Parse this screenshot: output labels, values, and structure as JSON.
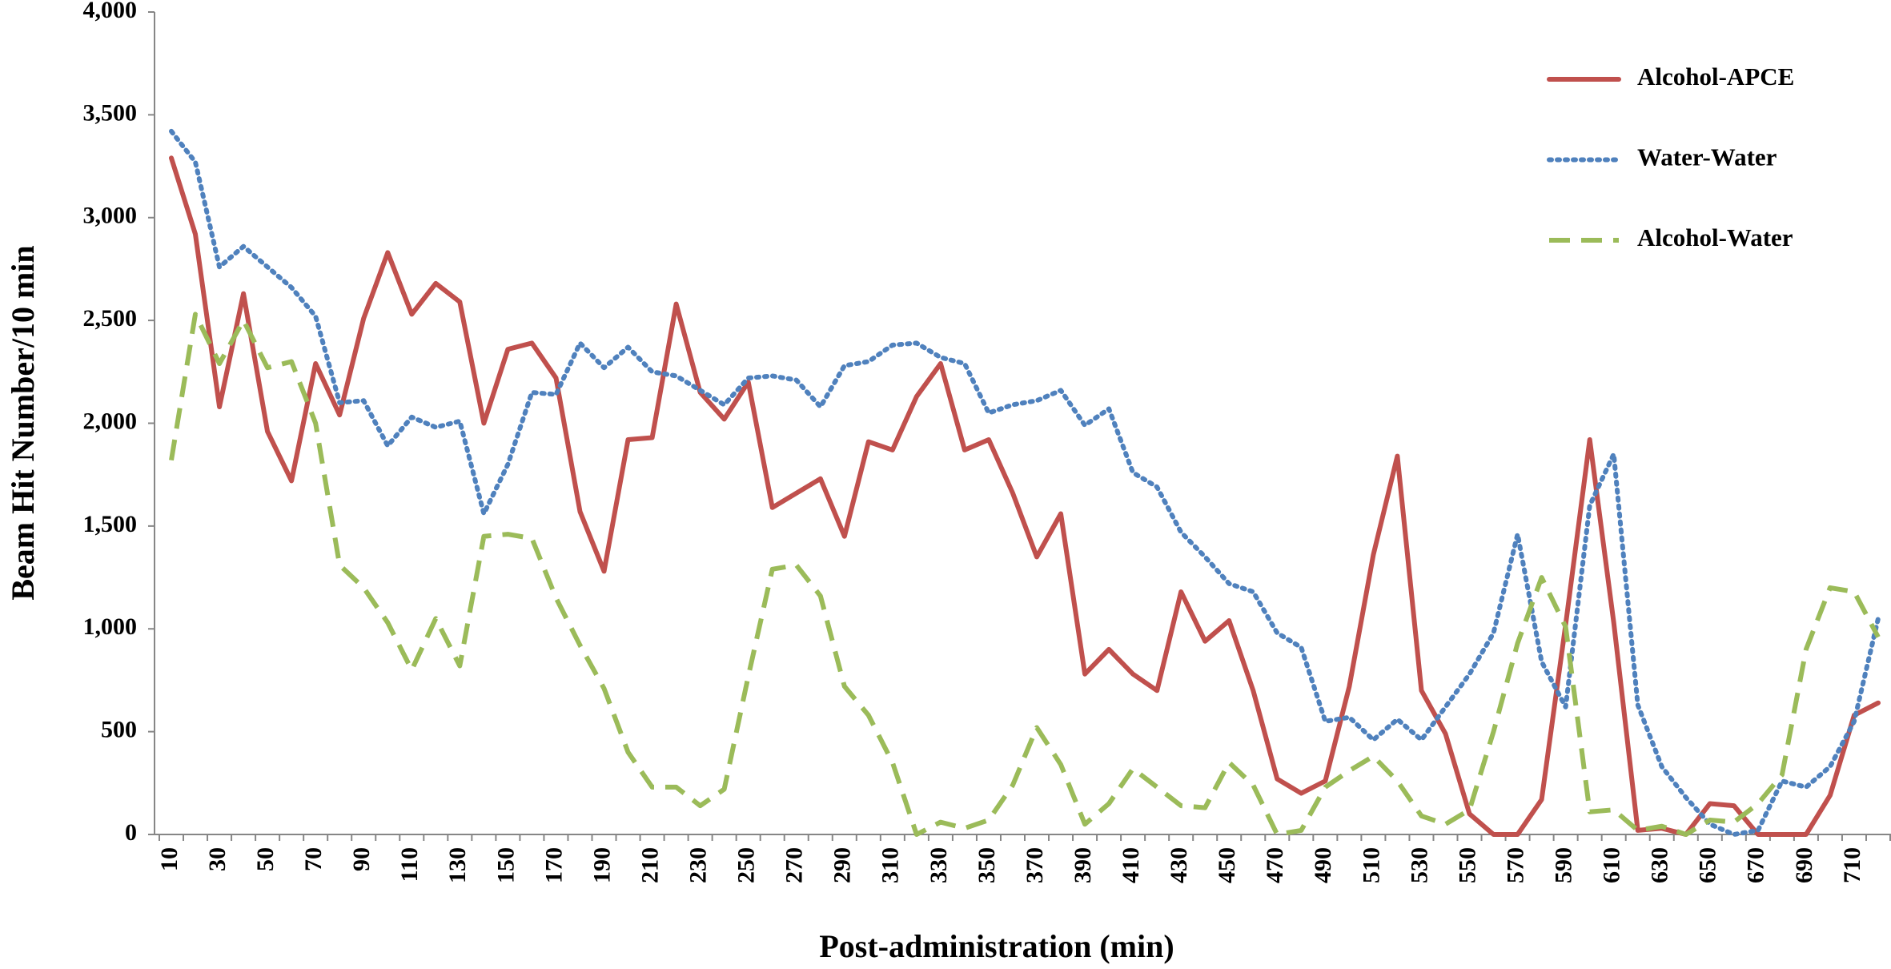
{
  "chart_data": {
    "type": "line",
    "x_label": "Post-administration (min)",
    "y_label": "Beam Hit Number/10 min",
    "categories": [
      10,
      null,
      30,
      null,
      50,
      null,
      70,
      null,
      90,
      null,
      110,
      null,
      130,
      null,
      150,
      null,
      170,
      null,
      190,
      null,
      210,
      null,
      230,
      null,
      250,
      null,
      270,
      null,
      290,
      null,
      310,
      null,
      330,
      null,
      350,
      null,
      370,
      null,
      390,
      null,
      410,
      null,
      430,
      null,
      450,
      null,
      470,
      null,
      490,
      null,
      510,
      null,
      530,
      null,
      550,
      null,
      570,
      null,
      590,
      null,
      610,
      null,
      630,
      null,
      650,
      null,
      670,
      null,
      690,
      null,
      710,
      null
    ],
    "ylim": [
      0,
      4000
    ],
    "yticks": [
      0,
      500,
      {
        "value": 1000,
        "label": "1,000"
      },
      {
        "value": 1500,
        "label": "1,500"
      },
      {
        "value": 2000,
        "label": "2,000"
      },
      {
        "value": 2500,
        "label": "2,500"
      },
      {
        "value": 3000,
        "label": "3,000"
      },
      {
        "value": 3500,
        "label": "3,500"
      },
      {
        "value": 4000,
        "label": "4,000"
      }
    ],
    "grid": false,
    "legend": "top-right",
    "series": [
      {
        "name": "Alcohol-APCE",
        "color": "#c0504d",
        "style": "solid",
        "values": [
          3290,
          2920,
          2080,
          2630,
          1960,
          1720,
          2290,
          2040,
          2510,
          2830,
          2530,
          2680,
          2590,
          2000,
          2360,
          2390,
          2220,
          1570,
          1280,
          1920,
          1930,
          2580,
          2150,
          2020,
          2200,
          1590,
          1660,
          1730,
          1450,
          1910,
          1870,
          2130,
          2290,
          1870,
          1920,
          1660,
          1350,
          1560,
          780,
          900,
          780,
          700,
          1180,
          940,
          1040,
          700,
          270,
          200,
          260,
          720,
          1360,
          1840,
          700,
          490,
          100,
          0,
          0,
          170,
          1020,
          1920,
          1030,
          20,
          30,
          0,
          150,
          140,
          0,
          0,
          0,
          190,
          580,
          640
        ]
      },
      {
        "name": "Water-Water",
        "color": "#4f81bd",
        "style": "dotted",
        "values": [
          3420,
          3270,
          2760,
          2860,
          2760,
          2660,
          2520,
          2100,
          2110,
          1890,
          2030,
          1980,
          2010,
          1560,
          1800,
          2150,
          2140,
          2390,
          2270,
          2370,
          2250,
          2230,
          2160,
          2090,
          2220,
          2230,
          2210,
          2080,
          2280,
          2300,
          2380,
          2390,
          2320,
          2290,
          2050,
          2090,
          2110,
          2160,
          1990,
          2070,
          1760,
          1690,
          1470,
          1350,
          1220,
          1180,
          980,
          910,
          550,
          570,
          460,
          560,
          460,
          620,
          780,
          980,
          1460,
          840,
          620,
          1600,
          1850,
          630,
          330,
          180,
          50,
          0,
          20,
          260,
          230,
          330,
          550,
          1050
        ]
      },
      {
        "name": "Alcohol-Water",
        "color": "#9bbb59",
        "style": "dashed",
        "values": [
          1820,
          2530,
          2290,
          2500,
          2270,
          2300,
          2000,
          1310,
          1200,
          1030,
          800,
          1050,
          820,
          1450,
          1460,
          1440,
          1150,
          920,
          710,
          400,
          230,
          230,
          140,
          220,
          770,
          1290,
          1310,
          1160,
          720,
          580,
          350,
          0,
          60,
          30,
          70,
          240,
          520,
          340,
          50,
          150,
          320,
          230,
          140,
          130,
          350,
          240,
          0,
          20,
          230,
          310,
          380,
          260,
          90,
          50,
          120,
          500,
          930,
          1250,
          1010,
          110,
          120,
          20,
          40,
          0,
          70,
          60,
          150,
          290,
          900,
          1200,
          1180,
          960
        ]
      }
    ]
  }
}
